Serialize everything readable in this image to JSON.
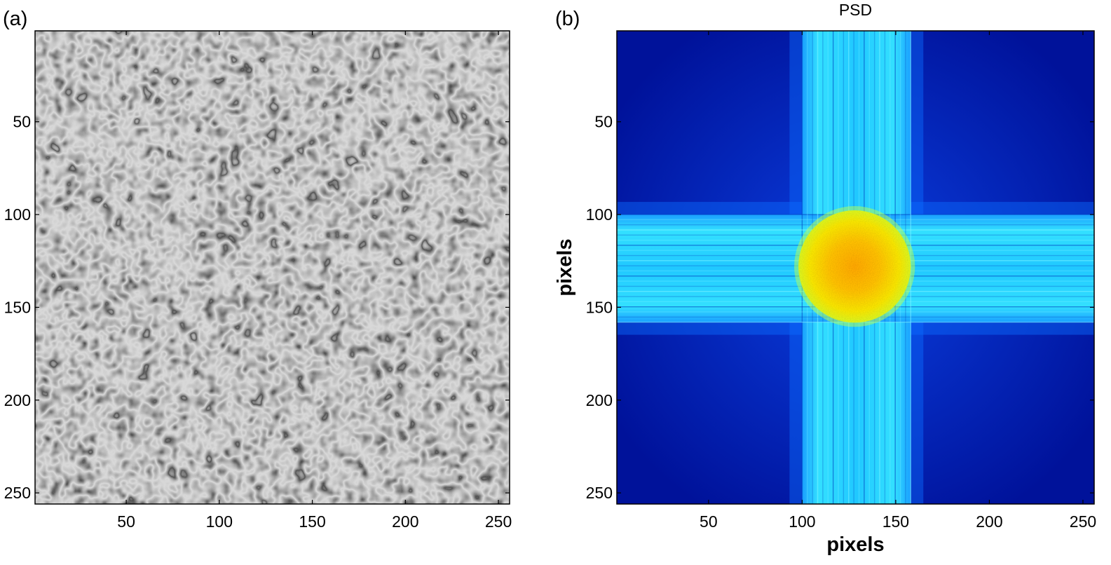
{
  "chart_data": [
    {
      "panel_label": "(a)",
      "type": "heatmap",
      "title": "",
      "xlabel": "",
      "ylabel": "",
      "colormap": "gray",
      "xlim": [
        1,
        256
      ],
      "ylim": [
        1,
        256
      ],
      "y_reversed": true,
      "xticks": [
        50,
        100,
        150,
        200,
        250
      ],
      "yticks": [
        50,
        100,
        150,
        200,
        250
      ]
    },
    {
      "panel_label": "(b)",
      "type": "heatmap",
      "title": "PSD",
      "xlabel": "pixels",
      "ylabel": "pixels",
      "colormap": "jet",
      "xlim": [
        1,
        256
      ],
      "ylim": [
        1,
        256
      ],
      "y_reversed": true,
      "xticks": [
        50,
        100,
        150,
        200,
        250
      ],
      "yticks": [
        50,
        100,
        150,
        200,
        250
      ],
      "central_disk_center": [
        128,
        128
      ],
      "central_disk_radius": 30,
      "cross_band_range": [
        100,
        158
      ]
    }
  ]
}
